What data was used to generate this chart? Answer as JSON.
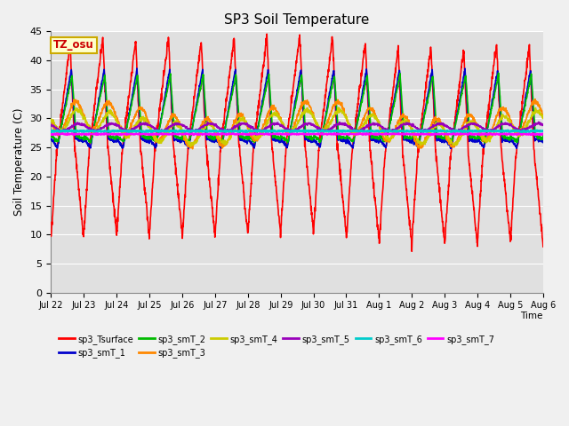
{
  "title": "SP3 Soil Temperature",
  "ylabel": "Soil Temperature (C)",
  "xlabel": "Time",
  "tz_label": "TZ_osu",
  "ylim": [
    0,
    45
  ],
  "yticks": [
    0,
    5,
    10,
    15,
    20,
    25,
    30,
    35,
    40,
    45
  ],
  "background_color": "#f0f0f0",
  "plot_bg_color": "#e0e0e0",
  "title_fontsize": 11,
  "series_order": [
    "sp3_Tsurface",
    "sp3_smT_1",
    "sp3_smT_2",
    "sp3_smT_3",
    "sp3_smT_4",
    "sp3_smT_5",
    "sp3_smT_6",
    "sp3_smT_7"
  ],
  "series": {
    "sp3_Tsurface": {
      "color": "#ff0000",
      "lw": 1.2
    },
    "sp3_smT_1": {
      "color": "#0000cc",
      "lw": 1.2
    },
    "sp3_smT_2": {
      "color": "#00bb00",
      "lw": 1.2
    },
    "sp3_smT_3": {
      "color": "#ff8800",
      "lw": 1.2
    },
    "sp3_smT_4": {
      "color": "#cccc00",
      "lw": 1.2
    },
    "sp3_smT_5": {
      "color": "#9900bb",
      "lw": 1.2
    },
    "sp3_smT_6": {
      "color": "#00cccc",
      "lw": 1.5
    },
    "sp3_smT_7": {
      "color": "#ff00ff",
      "lw": 1.5
    }
  },
  "date_labels": [
    "Jul 22",
    "Jul 23",
    "Jul 24",
    "Jul 25",
    "Jul 26",
    "Jul 27",
    "Jul 28",
    "Jul 29",
    "Jul 30",
    "Jul 31",
    "Aug 1",
    "Aug 2",
    "Aug 3",
    "Aug 4",
    "Aug 5",
    "Aug 6"
  ],
  "n_days": 15,
  "points_per_day": 144
}
